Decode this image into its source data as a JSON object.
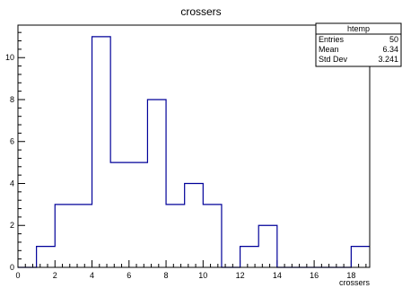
{
  "chart_data": {
    "type": "histogram",
    "title": "crossers",
    "xlabel": "crossers",
    "ylabel": "",
    "xlim": [
      0,
      19
    ],
    "ylim": [
      0,
      11.55
    ],
    "x_ticks": [
      0,
      2,
      4,
      6,
      8,
      10,
      12,
      14,
      16,
      18
    ],
    "y_ticks": [
      0,
      2,
      4,
      6,
      8,
      10
    ],
    "bins": [
      {
        "x0": 0,
        "x1": 1,
        "value": 0
      },
      {
        "x0": 1,
        "x1": 2,
        "value": 1
      },
      {
        "x0": 2,
        "x1": 3,
        "value": 3
      },
      {
        "x0": 3,
        "x1": 4,
        "value": 3
      },
      {
        "x0": 4,
        "x1": 5,
        "value": 11
      },
      {
        "x0": 5,
        "x1": 6,
        "value": 5
      },
      {
        "x0": 6,
        "x1": 7,
        "value": 5
      },
      {
        "x0": 7,
        "x1": 8,
        "value": 8
      },
      {
        "x0": 8,
        "x1": 9,
        "value": 3
      },
      {
        "x0": 9,
        "x1": 10,
        "value": 4
      },
      {
        "x0": 10,
        "x1": 11,
        "value": 3
      },
      {
        "x0": 11,
        "x1": 12,
        "value": 0
      },
      {
        "x0": 12,
        "x1": 13,
        "value": 1
      },
      {
        "x0": 13,
        "x1": 14,
        "value": 2
      },
      {
        "x0": 14,
        "x1": 15,
        "value": 0
      },
      {
        "x0": 15,
        "x1": 16,
        "value": 0
      },
      {
        "x0": 16,
        "x1": 17,
        "value": 0
      },
      {
        "x0": 17,
        "x1": 18,
        "value": 0
      },
      {
        "x0": 18,
        "x1": 19,
        "value": 1
      }
    ],
    "line_color": "#000099",
    "stats_box": {
      "title": "htemp",
      "rows": [
        {
          "label": "Entries",
          "value": "50"
        },
        {
          "label": "Mean",
          "value": "6.34"
        },
        {
          "label": "Std Dev",
          "value": "3.241"
        }
      ]
    }
  }
}
